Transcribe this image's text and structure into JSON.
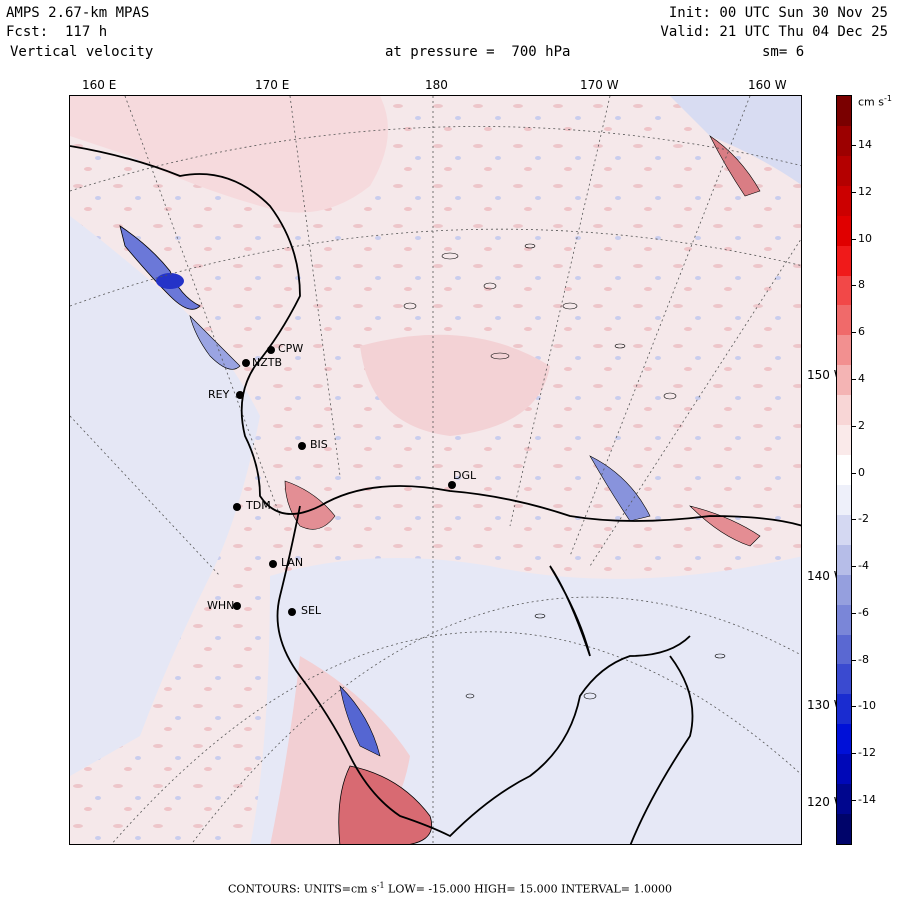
{
  "header": {
    "model": "AMPS 2.67-km MPAS",
    "forecast": "Fcst:  117 h",
    "field": "Vertical velocity",
    "init": "Init: 00 UTC Sun 30 Nov 25",
    "valid": "Valid: 21 UTC Thu 04 Dec 25",
    "level": "at pressure =  700 hPa",
    "smoothing": "sm= 6"
  },
  "map": {
    "longitude_labels": [
      "160 E",
      "170 E",
      "180",
      "170 W",
      "160 W"
    ],
    "latitude_labels": [
      "150 W",
      "140 W",
      "130 W",
      "120 W"
    ],
    "stations": [
      "CPW",
      "NZTB",
      "REY",
      "BIS",
      "DGL",
      "TDM",
      "LAN",
      "WHN",
      "SEL"
    ],
    "field_colors": {
      "strong_up": "#e8a4a8",
      "weak_up": "#f7dfe0",
      "weak_down": "#e3e6f4",
      "moderate_down": "#a8b2e2",
      "strong_down": "#4f5fd4"
    }
  },
  "colorbar": {
    "unit_label": "cm s",
    "unit_exponent": "-1",
    "tick_labels": [
      "14",
      "12",
      "10",
      "8",
      "6",
      "4",
      "2",
      "0",
      "-2",
      "-4",
      "-6",
      "-8",
      "-10",
      "-12",
      "-14"
    ],
    "colors": [
      "#7a0000",
      "#9c0000",
      "#b40000",
      "#cc0000",
      "#e00000",
      "#f01a1a",
      "#f24848",
      "#f06a6a",
      "#f29090",
      "#f4b4b4",
      "#f8d6d6",
      "#faeaea",
      "#ffffff",
      "#eef0fa",
      "#d4d8f2",
      "#b6bde8",
      "#959fde",
      "#7a86d8",
      "#5a68d2",
      "#3a4ad0",
      "#1a2cd0",
      "#0010d8",
      "#0008b8",
      "#00068e",
      "#00046a"
    ]
  },
  "footer": {
    "text": "CONTOURS:  UNITS=cm s",
    "unit_exponent": "-1",
    "stats": "  LOW= -15.000       HIGH=  15.000       INTERVAL=   1.0000"
  }
}
